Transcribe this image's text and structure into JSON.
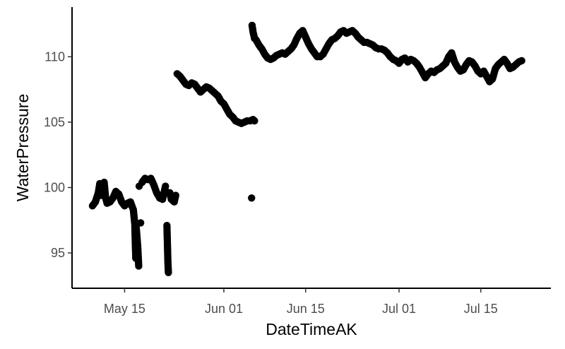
{
  "chart_data": {
    "type": "scatter",
    "title": "",
    "xlabel": "DateTimeAK",
    "ylabel": "WaterPressure",
    "x_type": "date",
    "xlim": [
      "2024-05-06",
      "2024-07-27"
    ],
    "ylim": [
      92.3,
      113.8
    ],
    "x_ticks": [
      {
        "value": "2024-05-15",
        "label": "May 15"
      },
      {
        "value": "2024-06-01",
        "label": "Jun 01"
      },
      {
        "value": "2024-06-15",
        "label": "Jun 15"
      },
      {
        "value": "2024-07-01",
        "label": "Jul 01"
      },
      {
        "value": "2024-07-15",
        "label": "Jul 15"
      }
    ],
    "y_ticks": [
      {
        "value": 95,
        "label": "95"
      },
      {
        "value": 100,
        "label": "100"
      },
      {
        "value": 105,
        "label": "105"
      },
      {
        "value": 110,
        "label": "110"
      }
    ],
    "grid": false,
    "legend": "none",
    "point_color": "#000000",
    "series": [
      {
        "points": [
          [
            "2024-05-09T12:00",
            98.6
          ],
          [
            "2024-05-10T00:00",
            98.9
          ],
          [
            "2024-05-10T12:00",
            99.6
          ],
          [
            "2024-05-10T18:00",
            100.3
          ],
          [
            "2024-05-11T00:00",
            99.4
          ],
          [
            "2024-05-11T12:00",
            100.4
          ],
          [
            "2024-05-11T18:00",
            99.2
          ],
          [
            "2024-05-12T00:00",
            98.8
          ],
          [
            "2024-05-12T12:00",
            98.9
          ],
          [
            "2024-05-13T00:00",
            99.2
          ],
          [
            "2024-05-13T12:00",
            99.7
          ],
          [
            "2024-05-14T00:00",
            99.5
          ],
          [
            "2024-05-14T12:00",
            98.9
          ],
          [
            "2024-05-15T00:00",
            98.6
          ],
          [
            "2024-05-15T12:00",
            98.8
          ],
          [
            "2024-05-16T00:00",
            98.9
          ],
          [
            "2024-05-16T12:00",
            98.3
          ],
          [
            "2024-05-16T18:00",
            97.2
          ],
          [
            "2024-05-16T20:00",
            95.8
          ],
          [
            "2024-05-16T22:00",
            94.6
          ],
          [
            "2024-05-17T00:00",
            96.9
          ],
          [
            "2024-05-17T06:00",
            95.5
          ],
          [
            "2024-05-17T10:00",
            94.0
          ],
          [
            "2024-05-17T12:00",
            100.1
          ],
          [
            "2024-05-17T18:00",
            97.3
          ],
          [
            "2024-05-18T00:00",
            100.4
          ],
          [
            "2024-05-18T12:00",
            100.7
          ],
          [
            "2024-05-19T00:00",
            100.6
          ],
          [
            "2024-05-19T12:00",
            100.7
          ],
          [
            "2024-05-20T00:00",
            100.2
          ],
          [
            "2024-05-20T12:00",
            99.6
          ],
          [
            "2024-05-21T00:00",
            99.2
          ],
          [
            "2024-05-21T12:00",
            99.1
          ],
          [
            "2024-05-22T00:00",
            100.1
          ],
          [
            "2024-05-22T06:00",
            97.1
          ],
          [
            "2024-05-22T08:00",
            95.7
          ],
          [
            "2024-05-22T10:00",
            94.3
          ],
          [
            "2024-05-22T12:00",
            93.5
          ],
          [
            "2024-05-22T18:00",
            99.6
          ],
          [
            "2024-05-23T00:00",
            99.1
          ],
          [
            "2024-05-23T12:00",
            98.9
          ],
          [
            "2024-05-23T18:00",
            99.4
          ],
          [
            "2024-05-24T00:00",
            108.7
          ],
          [
            "2024-05-24T12:00",
            108.5
          ],
          [
            "2024-05-25T00:00",
            108.2
          ],
          [
            "2024-05-25T12:00",
            107.9
          ],
          [
            "2024-05-26T00:00",
            107.8
          ],
          [
            "2024-05-26T12:00",
            108.0
          ],
          [
            "2024-05-27T00:00",
            107.9
          ],
          [
            "2024-05-27T12:00",
            107.6
          ],
          [
            "2024-05-28T00:00",
            107.3
          ],
          [
            "2024-05-28T12:00",
            107.5
          ],
          [
            "2024-05-29T00:00",
            107.7
          ],
          [
            "2024-05-29T12:00",
            107.6
          ],
          [
            "2024-05-30T00:00",
            107.4
          ],
          [
            "2024-05-30T12:00",
            107.2
          ],
          [
            "2024-05-31T00:00",
            107.0
          ],
          [
            "2024-05-31T12:00",
            106.6
          ],
          [
            "2024-06-01T00:00",
            106.4
          ],
          [
            "2024-06-01T12:00",
            106.0
          ],
          [
            "2024-06-02T00:00",
            105.6
          ],
          [
            "2024-06-02T12:00",
            105.4
          ],
          [
            "2024-06-03T00:00",
            105.1
          ],
          [
            "2024-06-03T12:00",
            105.0
          ],
          [
            "2024-06-04T00:00",
            104.9
          ],
          [
            "2024-06-04T12:00",
            105.0
          ],
          [
            "2024-06-05T00:00",
            105.1
          ],
          [
            "2024-06-05T12:00",
            105.1
          ],
          [
            "2024-06-06T00:00",
            105.2
          ],
          [
            "2024-06-06T06:00",
            105.1
          ],
          [
            "2024-06-05T18:00",
            99.2
          ],
          [
            "2024-06-05T20:00",
            112.4
          ],
          [
            "2024-06-06T00:00",
            111.9
          ],
          [
            "2024-06-06T06:00",
            111.4
          ],
          [
            "2024-06-06T12:00",
            111.3
          ],
          [
            "2024-06-07T00:00",
            110.9
          ],
          [
            "2024-06-07T12:00",
            110.6
          ],
          [
            "2024-06-08T00:00",
            110.2
          ],
          [
            "2024-06-08T12:00",
            109.9
          ],
          [
            "2024-06-09T00:00",
            109.8
          ],
          [
            "2024-06-09T12:00",
            109.9
          ],
          [
            "2024-06-10T00:00",
            110.1
          ],
          [
            "2024-06-10T12:00",
            110.2
          ],
          [
            "2024-06-11T00:00",
            110.3
          ],
          [
            "2024-06-11T12:00",
            110.2
          ],
          [
            "2024-06-12T00:00",
            110.4
          ],
          [
            "2024-06-12T12:00",
            110.6
          ],
          [
            "2024-06-13T00:00",
            110.9
          ],
          [
            "2024-06-13T12:00",
            111.4
          ],
          [
            "2024-06-14T00:00",
            111.8
          ],
          [
            "2024-06-14T12:00",
            112.0
          ],
          [
            "2024-06-15T00:00",
            111.5
          ],
          [
            "2024-06-15T12:00",
            111.0
          ],
          [
            "2024-06-16T00:00",
            110.6
          ],
          [
            "2024-06-16T12:00",
            110.3
          ],
          [
            "2024-06-17T00:00",
            110.0
          ],
          [
            "2024-06-17T12:00",
            110.0
          ],
          [
            "2024-06-18T00:00",
            110.2
          ],
          [
            "2024-06-18T12:00",
            110.6
          ],
          [
            "2024-06-19T00:00",
            111.0
          ],
          [
            "2024-06-19T12:00",
            111.3
          ],
          [
            "2024-06-20T00:00",
            111.4
          ],
          [
            "2024-06-20T12:00",
            111.6
          ],
          [
            "2024-06-21T00:00",
            111.9
          ],
          [
            "2024-06-21T12:00",
            112.0
          ],
          [
            "2024-06-22T00:00",
            111.8
          ],
          [
            "2024-06-22T12:00",
            111.9
          ],
          [
            "2024-06-23T00:00",
            112.0
          ],
          [
            "2024-06-23T12:00",
            111.8
          ],
          [
            "2024-06-24T00:00",
            111.5
          ],
          [
            "2024-06-24T12:00",
            111.3
          ],
          [
            "2024-06-25T00:00",
            111.1
          ],
          [
            "2024-06-25T12:00",
            111.1
          ],
          [
            "2024-06-26T00:00",
            111.0
          ],
          [
            "2024-06-26T12:00",
            110.9
          ],
          [
            "2024-06-27T00:00",
            110.7
          ],
          [
            "2024-06-27T12:00",
            110.6
          ],
          [
            "2024-06-28T00:00",
            110.6
          ],
          [
            "2024-06-28T12:00",
            110.5
          ],
          [
            "2024-06-29T00:00",
            110.3
          ],
          [
            "2024-06-29T12:00",
            110.0
          ],
          [
            "2024-06-30T00:00",
            109.8
          ],
          [
            "2024-06-30T12:00",
            109.7
          ],
          [
            "2024-07-01T00:00",
            109.5
          ],
          [
            "2024-07-01T12:00",
            109.8
          ],
          [
            "2024-07-02T00:00",
            109.9
          ],
          [
            "2024-07-02T12:00",
            109.6
          ],
          [
            "2024-07-03T00:00",
            109.8
          ],
          [
            "2024-07-03T12:00",
            109.7
          ],
          [
            "2024-07-04T00:00",
            109.5
          ],
          [
            "2024-07-04T12:00",
            109.2
          ],
          [
            "2024-07-05T00:00",
            108.8
          ],
          [
            "2024-07-05T12:00",
            108.4
          ],
          [
            "2024-07-06T00:00",
            108.7
          ],
          [
            "2024-07-06T12:00",
            108.9
          ],
          [
            "2024-07-07T00:00",
            108.8
          ],
          [
            "2024-07-07T12:00",
            109.0
          ],
          [
            "2024-07-08T00:00",
            109.1
          ],
          [
            "2024-07-08T12:00",
            109.3
          ],
          [
            "2024-07-09T00:00",
            109.5
          ],
          [
            "2024-07-09T12:00",
            110.0
          ],
          [
            "2024-07-10T00:00",
            110.3
          ],
          [
            "2024-07-10T12:00",
            109.6
          ],
          [
            "2024-07-11T00:00",
            109.2
          ],
          [
            "2024-07-11T12:00",
            108.9
          ],
          [
            "2024-07-12T00:00",
            109.0
          ],
          [
            "2024-07-12T12:00",
            109.4
          ],
          [
            "2024-07-13T00:00",
            109.7
          ],
          [
            "2024-07-13T12:00",
            109.6
          ],
          [
            "2024-07-14T00:00",
            109.3
          ],
          [
            "2024-07-14T12:00",
            108.9
          ],
          [
            "2024-07-15T00:00",
            108.7
          ],
          [
            "2024-07-15T12:00",
            108.9
          ],
          [
            "2024-07-16T00:00",
            108.5
          ],
          [
            "2024-07-16T12:00",
            108.1
          ],
          [
            "2024-07-17T00:00",
            108.3
          ],
          [
            "2024-07-17T12:00",
            109.1
          ],
          [
            "2024-07-18T00:00",
            109.4
          ],
          [
            "2024-07-18T12:00",
            109.6
          ],
          [
            "2024-07-19T00:00",
            109.8
          ],
          [
            "2024-07-19T12:00",
            109.5
          ],
          [
            "2024-07-20T00:00",
            109.1
          ],
          [
            "2024-07-20T12:00",
            109.2
          ],
          [
            "2024-07-21T00:00",
            109.4
          ],
          [
            "2024-07-21T12:00",
            109.6
          ],
          [
            "2024-07-22T00:00",
            109.7
          ]
        ]
      }
    ]
  }
}
